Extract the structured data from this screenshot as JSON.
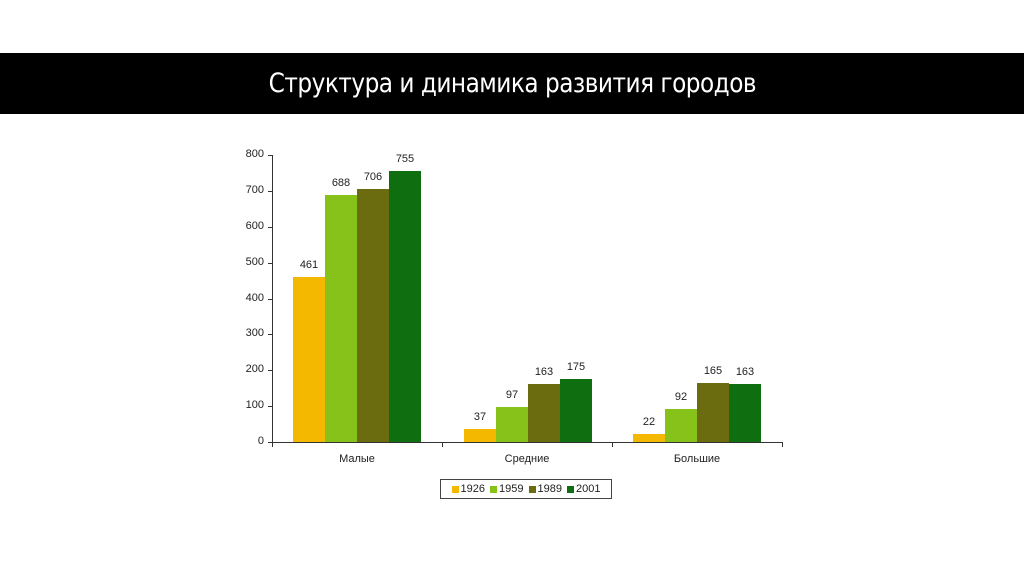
{
  "slide": {
    "title": "Структура и динамика развития городов"
  },
  "chart_data": {
    "type": "bar",
    "title": "",
    "xlabel": "",
    "ylabel": "",
    "ylim": [
      0,
      800
    ],
    "yticks": [
      0,
      100,
      200,
      300,
      400,
      500,
      600,
      700,
      800
    ],
    "categories": [
      "Малые",
      "Средние",
      "Большие"
    ],
    "series": [
      {
        "name": "1926",
        "color": "#F5B800",
        "values": [
          461,
          37,
          22
        ]
      },
      {
        "name": "1959",
        "color": "#86C21A",
        "values": [
          688,
          97,
          92
        ]
      },
      {
        "name": "1989",
        "color": "#6B6B10",
        "values": [
          706,
          163,
          165
        ]
      },
      {
        "name": "2001",
        "color": "#0F6E0F",
        "values": [
          755,
          175,
          163
        ]
      }
    ],
    "data_labels": true,
    "grid": false,
    "legend_position": "bottom"
  }
}
